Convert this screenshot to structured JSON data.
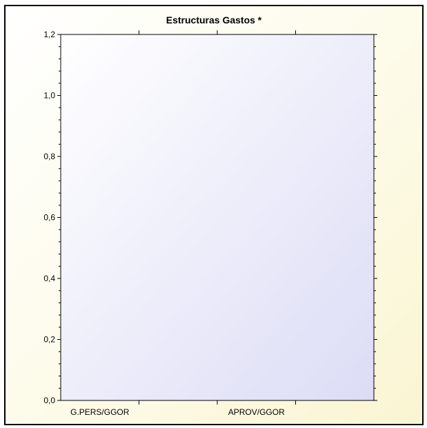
{
  "chart_data": {
    "type": "bar",
    "title": "Estructuras Gastos *",
    "categories": [
      "G.PERS/GGOR",
      "APROV/GGOR"
    ],
    "series": [],
    "xlabel": "",
    "ylabel": "",
    "ylim": [
      0,
      1.2
    ],
    "yticks": [
      "0,0",
      "0,2",
      "0,4",
      "0,6",
      "0,8",
      "1,0",
      "1,2"
    ],
    "grid": false,
    "legend": "none"
  },
  "colors": {
    "plot_gradient_start": "#ffffff",
    "plot_gradient_end": "#dcdcf6",
    "frame_border": "#000000"
  }
}
